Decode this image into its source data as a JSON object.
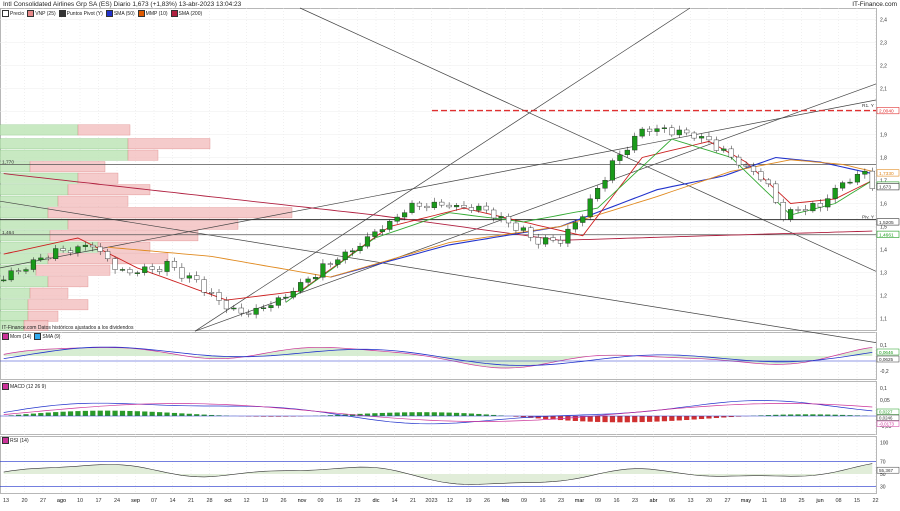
{
  "header": {
    "title": "Intl Consolidated Airlines Grp SA (ES) Diario 1,673 (+1,83%) 13-abr-2023 13:04:23",
    "brand": "IT-Finance.com"
  },
  "legend_main": [
    {
      "label": "Precio",
      "color": "#ffffff"
    },
    {
      "label": "VNP (25)",
      "color": "#e88a8a"
    },
    {
      "label": "Puntos Pivot (Y)",
      "color": "#333333"
    },
    {
      "label": "SMA (50)",
      "color": "#2233cc"
    },
    {
      "label": "MMP (10)",
      "color": "#e05a00"
    },
    {
      "label": "SMA (200)",
      "color": "#b02040"
    }
  ],
  "footer_note": "IT-Finance.com   Datos históricos ajustados a los dividendos",
  "colors": {
    "up": "#1a9a1a",
    "down": "#e03030",
    "sma50": "#2233cc",
    "sma200": "#b02040",
    "mmp10": "#e08a20",
    "ema_red": "#cc2020",
    "ema_green": "#33aa33",
    "resistance": "#e03030"
  },
  "chart_data": [
    {
      "type": "candlestick",
      "name": "main",
      "x_labels": [
        "13",
        "20",
        "27",
        "ago",
        "10",
        "17",
        "24",
        "sep",
        "07",
        "14",
        "21",
        "28",
        "oct",
        "12",
        "19",
        "26",
        "nov",
        "09",
        "16",
        "23",
        "dic",
        "14",
        "21",
        "2023",
        "12",
        "19",
        "26",
        "feb",
        "09",
        "16",
        "23",
        "mar",
        "09",
        "16",
        "23",
        "abr",
        "06",
        "13",
        "20",
        "27",
        "may",
        "11",
        "18",
        "25",
        "jun",
        "08",
        "15",
        "22"
      ],
      "ylim": [
        1.05,
        2.45
      ],
      "y_ticks": [
        1.1,
        1.2,
        1.3,
        1.4,
        1.5,
        1.6,
        1.7,
        1.8,
        1.9,
        2.0,
        2.1,
        2.2,
        2.3,
        2.4
      ],
      "y_tick_labels": [
        "1,1",
        "1,2",
        "1,3",
        "1,4",
        "1,5",
        "1,6",
        "1,7",
        "1,8",
        "1,9",
        "2,0",
        "2,1",
        "2,2",
        "2,3",
        "2,4"
      ],
      "close_anchors": [
        [
          0,
          1.28
        ],
        [
          6,
          1.38
        ],
        [
          12,
          1.42
        ],
        [
          16,
          1.3
        ],
        [
          22,
          1.33
        ],
        [
          26,
          1.26
        ],
        [
          30,
          1.15
        ],
        [
          33,
          1.12
        ],
        [
          38,
          1.2
        ],
        [
          42,
          1.3
        ],
        [
          47,
          1.4
        ],
        [
          52,
          1.52
        ],
        [
          55,
          1.6
        ],
        [
          59,
          1.59
        ],
        [
          64,
          1.58
        ],
        [
          68,
          1.52
        ],
        [
          72,
          1.44
        ],
        [
          75,
          1.43
        ],
        [
          78,
          1.55
        ],
        [
          82,
          1.78
        ],
        [
          86,
          1.92
        ],
        [
          90,
          1.92
        ],
        [
          94,
          1.89
        ],
        [
          97,
          1.82
        ],
        [
          100,
          1.76
        ],
        [
          103,
          1.68
        ],
        [
          105,
          1.55
        ],
        [
          107,
          1.57
        ],
        [
          110,
          1.59
        ],
        [
          113,
          1.7
        ],
        [
          116,
          1.74
        ],
        [
          117,
          1.67
        ]
      ],
      "ma_lines": [
        {
          "key": "sma200",
          "anchors": [
            [
              0,
              1.73
            ],
            [
              25,
              1.64
            ],
            [
              50,
              1.55
            ],
            [
              75,
              1.44
            ],
            [
              95,
              1.46
            ],
            [
              117,
              1.48
            ]
          ]
        },
        {
          "key": "sma50",
          "anchors": [
            [
              44,
              1.28
            ],
            [
              60,
              1.42
            ],
            [
              75,
              1.5
            ],
            [
              88,
              1.66
            ],
            [
              97,
              1.72
            ],
            [
              104,
              1.8
            ],
            [
              110,
              1.78
            ],
            [
              117,
              1.73
            ]
          ]
        },
        {
          "key": "mmp10",
          "anchors": [
            [
              14,
              1.41
            ],
            [
              28,
              1.37
            ],
            [
              44,
              1.28
            ],
            [
              60,
              1.43
            ],
            [
              75,
              1.5
            ],
            [
              88,
              1.63
            ],
            [
              98,
              1.74
            ],
            [
              106,
              1.79
            ],
            [
              113,
              1.77
            ],
            [
              117,
              1.74
            ]
          ]
        },
        {
          "key": "ema_red",
          "anchors": [
            [
              0,
              1.38
            ],
            [
              10,
              1.45
            ],
            [
              18,
              1.32
            ],
            [
              30,
              1.18
            ],
            [
              40,
              1.22
            ],
            [
              52,
              1.5
            ],
            [
              62,
              1.58
            ],
            [
              70,
              1.52
            ],
            [
              78,
              1.46
            ],
            [
              86,
              1.8
            ],
            [
              95,
              1.87
            ],
            [
              100,
              1.78
            ],
            [
              106,
              1.6
            ],
            [
              112,
              1.62
            ],
            [
              117,
              1.7
            ]
          ]
        },
        {
          "key": "ema_green",
          "anchors": [
            [
              38,
              1.17
            ],
            [
              50,
              1.45
            ],
            [
              60,
              1.56
            ],
            [
              70,
              1.52
            ],
            [
              80,
              1.58
            ],
            [
              90,
              1.88
            ],
            [
              98,
              1.8
            ],
            [
              106,
              1.55
            ],
            [
              112,
              1.6
            ],
            [
              117,
              1.7
            ]
          ]
        }
      ],
      "price_tags": [
        {
          "label": "1,7330",
          "y": 1.733,
          "color": "#e08a20"
        },
        {
          "label": "1,6799",
          "y": 1.68,
          "color": "#1a9a1a"
        },
        {
          "label": "1,673",
          "y": 1.673,
          "color": "#333333"
        },
        {
          "label": "1,5205",
          "y": 1.52,
          "color": "#333333"
        },
        {
          "label": "1,4661",
          "y": 1.466,
          "color": "#1a9a1a"
        },
        {
          "label": "2,0040",
          "y": 2.004,
          "color": "#e03030"
        }
      ],
      "level_labels": [
        {
          "label": "1,770",
          "y": 1.77
        },
        {
          "label": "1,464",
          "y": 1.464
        },
        {
          "label": "Piv. Y",
          "y": 1.53
        },
        {
          "label": "R1. Y",
          "y": 2.015
        }
      ]
    },
    {
      "type": "line",
      "name": "momentum",
      "legend": [
        {
          "label": "Mom (14)",
          "color": "#cc3399"
        },
        {
          "label": "SMA (9)",
          "color": "#33aaee"
        }
      ],
      "y_tick_labels": [
        "0,1",
        "-0,2"
      ],
      "tags": [
        {
          "label": "0,0646",
          "color": "#1a9a1a"
        },
        {
          "label": "0,0625",
          "color": "#333333"
        }
      ]
    },
    {
      "type": "bar",
      "name": "macd",
      "legend": [
        {
          "label": "MACD (12 26 9)",
          "color": "#cc3399"
        }
      ],
      "y_tick_labels": [
        "0,1",
        "0,05",
        "-0,05"
      ],
      "tags": [
        {
          "label": "0,0227",
          "color": "#1a9a1a"
        },
        {
          "label": "0,0246",
          "color": "#333333"
        },
        {
          "label": "-0,0173",
          "color": "#cc3399"
        }
      ]
    },
    {
      "type": "line",
      "name": "rsi",
      "legend": [
        {
          "label": "RSI (14)",
          "color": "#cc3399"
        }
      ],
      "y_tick_labels": [
        "100",
        "70",
        "50",
        "30"
      ],
      "tags": [
        {
          "label": "55,367",
          "color": "#333333"
        }
      ]
    }
  ]
}
